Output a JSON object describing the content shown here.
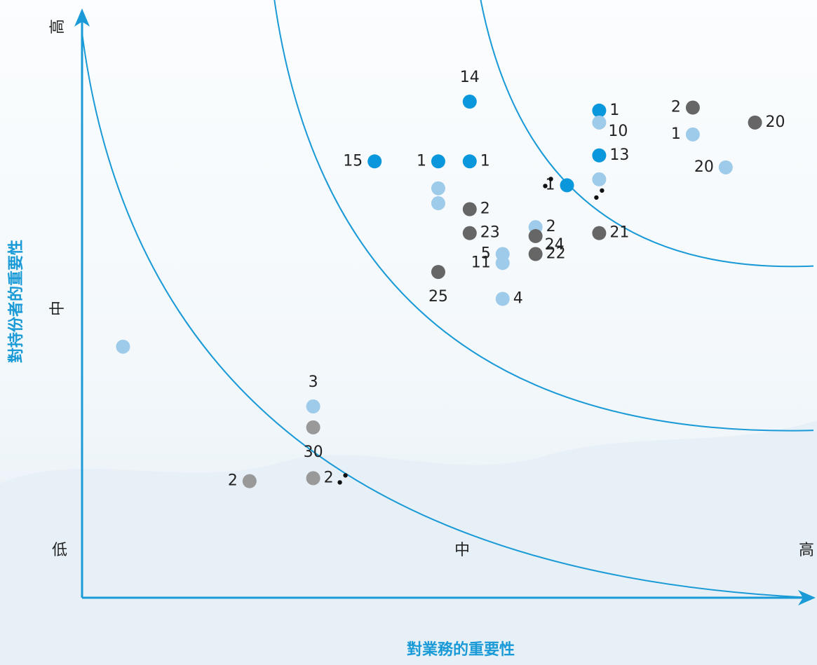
{
  "chart_data": {
    "type": "scatter",
    "xlabel": "對業務的重要性",
    "ylabel": "對持份者的重要性",
    "x_ticks": [
      "低",
      "中",
      "高"
    ],
    "y_ticks": [
      "中",
      "高"
    ],
    "xlim": [
      0,
      10
    ],
    "ylim": [
      0,
      10
    ],
    "grid": false,
    "colors": {
      "axis": "#1a9ad6",
      "dark_blue": "#0a97dc",
      "light_blue": "#9fcbeb",
      "dark_gray": "#666666",
      "gray": "#999999",
      "marker": "#111111",
      "label": "#222222"
    },
    "curves": [
      {
        "name": "boundary-low",
        "x0": 0,
        "y0": 9.45,
        "cx": 0.95,
        "cy": 0.5,
        "x1": 10,
        "y1": 0
      },
      {
        "name": "boundary-mid",
        "x0": 2.63,
        "y0": 10,
        "cx": 3.5,
        "cy": 2.6,
        "x1": 10,
        "y1": 2.8
      },
      {
        "name": "boundary-high",
        "x0": 5.45,
        "y0": 10,
        "cx": 6.2,
        "cy": 5.35,
        "x1": 10,
        "y1": 5.55
      }
    ],
    "points": [
      {
        "x": 0.56,
        "y": 4.2,
        "color": "light_blue"
      },
      {
        "x": 3.16,
        "y": 3.2,
        "color": "light_blue",
        "label": "3",
        "pos": "above"
      },
      {
        "x": 3.16,
        "y": 2.85,
        "color": "gray",
        "label": "30",
        "pos": "below"
      },
      {
        "x": 2.29,
        "y": 1.95,
        "color": "gray",
        "label": "2",
        "pos": "left"
      },
      {
        "x": 3.16,
        "y": 2.0,
        "color": "gray",
        "label": "2",
        "pos": "right",
        "marker": true
      },
      {
        "x": 4.0,
        "y": 7.3,
        "color": "dark_blue",
        "label": "15",
        "pos": "left"
      },
      {
        "x": 4.87,
        "y": 7.3,
        "color": "dark_blue",
        "label": "1",
        "pos": "left"
      },
      {
        "x": 5.3,
        "y": 7.3,
        "color": "dark_blue",
        "label": "1",
        "pos": "right"
      },
      {
        "x": 5.3,
        "y": 8.3,
        "color": "dark_blue",
        "label": "14",
        "pos": "above"
      },
      {
        "x": 4.87,
        "y": 6.85,
        "color": "light_blue"
      },
      {
        "x": 4.87,
        "y": 6.6,
        "color": "light_blue"
      },
      {
        "x": 5.3,
        "y": 6.5,
        "color": "dark_gray",
        "label": "2",
        "pos": "right"
      },
      {
        "x": 5.3,
        "y": 6.1,
        "color": "dark_gray",
        "label": "23",
        "pos": "right"
      },
      {
        "x": 4.87,
        "y": 5.45,
        "color": "dark_gray",
        "label": "25",
        "pos": "below"
      },
      {
        "x": 5.75,
        "y": 5.75,
        "color": "light_blue",
        "label": "5",
        "pos": "left"
      },
      {
        "x": 5.75,
        "y": 5.6,
        "color": "light_blue",
        "label": "11",
        "pos": "left"
      },
      {
        "x": 5.75,
        "y": 5.0,
        "color": "light_blue",
        "label": "4",
        "pos": "right"
      },
      {
        "x": 6.2,
        "y": 6.2,
        "color": "light_blue",
        "label": "2",
        "pos": "right"
      },
      {
        "x": 6.2,
        "y": 6.05,
        "color": "dark_gray",
        "label": "24",
        "pos": "belowright"
      },
      {
        "x": 6.2,
        "y": 5.75,
        "color": "dark_gray",
        "label": "22",
        "pos": "right"
      },
      {
        "x": 6.63,
        "y": 6.9,
        "color": "dark_blue",
        "label": "1",
        "pos": "left",
        "marker": true
      },
      {
        "x": 7.07,
        "y": 8.15,
        "color": "dark_blue",
        "label": "1",
        "pos": "right"
      },
      {
        "x": 7.07,
        "y": 7.95,
        "color": "light_blue",
        "label": "10",
        "pos": "belowright"
      },
      {
        "x": 7.07,
        "y": 7.4,
        "color": "dark_blue",
        "label": "13",
        "pos": "right"
      },
      {
        "x": 7.07,
        "y": 7.0,
        "color": "light_blue",
        "marker": true
      },
      {
        "x": 7.07,
        "y": 6.1,
        "color": "dark_gray",
        "label": "21",
        "pos": "right"
      },
      {
        "x": 8.35,
        "y": 8.2,
        "color": "dark_gray",
        "label": "2",
        "pos": "left"
      },
      {
        "x": 8.35,
        "y": 7.75,
        "color": "light_blue",
        "label": "1",
        "pos": "left"
      },
      {
        "x": 9.2,
        "y": 7.95,
        "color": "dark_gray",
        "label": "20",
        "pos": "right"
      },
      {
        "x": 8.8,
        "y": 7.2,
        "color": "light_blue",
        "label": "20",
        "pos": "left"
      }
    ]
  }
}
